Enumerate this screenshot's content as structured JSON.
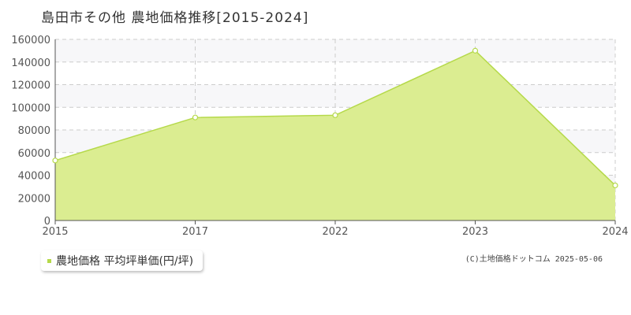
{
  "chart_data": {
    "type": "area",
    "title": "島田市その他 農地価格推移[2015-2024]",
    "categories": [
      "2015",
      "2017",
      "2022",
      "2023",
      "2024"
    ],
    "series": [
      {
        "name": "農地価格 平均坪単価(円/坪)",
        "values": [
          53000,
          91000,
          93000,
          150000,
          31000
        ]
      }
    ],
    "ylim": [
      0,
      160000
    ],
    "yticks": [
      0,
      20000,
      40000,
      60000,
      80000,
      100000,
      120000,
      140000,
      160000
    ],
    "grid": true,
    "legend_position": "bottom-left",
    "colors": {
      "fill": "#dbed91",
      "line": "#b5d94a",
      "marker_fill": "#ffffff"
    }
  },
  "copyright": "(C)土地価格ドットコム 2025-05-06"
}
